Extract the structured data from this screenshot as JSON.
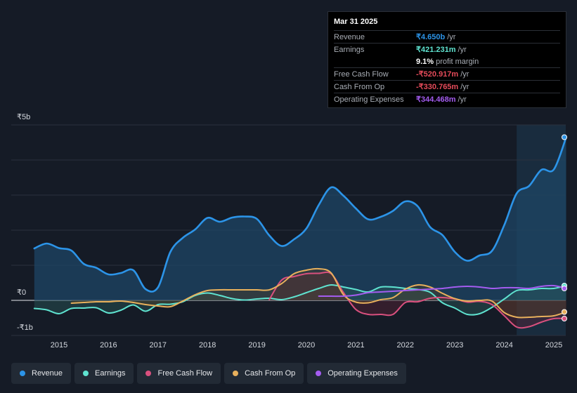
{
  "tooltip": {
    "date": "Mar 31 2025",
    "rows": [
      {
        "label": "Revenue",
        "value": "₹4.650b",
        "unit": "/yr",
        "color": "#2c94e8"
      },
      {
        "label": "Earnings",
        "value": "₹421.231m",
        "unit": "/yr",
        "color": "#5fe3d0"
      },
      {
        "label": "",
        "value": "9.1%",
        "unit": "profit margin",
        "color": "#ffffff"
      },
      {
        "label": "Free Cash Flow",
        "value": "-₹520.917m",
        "unit": "/yr",
        "color": "#e54b5a"
      },
      {
        "label": "Cash From Op",
        "value": "-₹330.765m",
        "unit": "/yr",
        "color": "#e54b5a"
      },
      {
        "label": "Operating Expenses",
        "value": "₹344.468m",
        "unit": "/yr",
        "color": "#a45cf0"
      }
    ]
  },
  "legend": [
    {
      "label": "Revenue",
      "color": "#2c94e8"
    },
    {
      "label": "Earnings",
      "color": "#5fe3d0"
    },
    {
      "label": "Free Cash Flow",
      "color": "#d9507e"
    },
    {
      "label": "Cash From Op",
      "color": "#e8b05c"
    },
    {
      "label": "Operating Expenses",
      "color": "#a45cf0"
    }
  ],
  "chart_data": {
    "type": "line",
    "title": "",
    "xlabel": "",
    "ylabel": "",
    "y_tick_labels": [
      "₹5b",
      "₹0",
      "-₹1b"
    ],
    "x_tick_labels": [
      "2015",
      "2016",
      "2017",
      "2018",
      "2019",
      "2020",
      "2021",
      "2022",
      "2023",
      "2024",
      "2025"
    ],
    "ylim": [
      -1.0,
      5.0
    ],
    "xlim": [
      2014.5,
      2025.3
    ],
    "highlight_from": 2024.25,
    "series": [
      {
        "name": "Revenue",
        "color": "#2c94e8",
        "fill": true,
        "x": [
          2014.5,
          2014.75,
          2015.0,
          2015.25,
          2015.5,
          2015.75,
          2016.0,
          2016.25,
          2016.5,
          2016.75,
          2017.0,
          2017.25,
          2017.5,
          2017.75,
          2018.0,
          2018.25,
          2018.5,
          2018.75,
          2019.0,
          2019.25,
          2019.5,
          2019.75,
          2020.0,
          2020.25,
          2020.5,
          2020.75,
          2021.0,
          2021.25,
          2021.5,
          2021.75,
          2022.0,
          2022.25,
          2022.5,
          2022.75,
          2023.0,
          2023.25,
          2023.5,
          2023.75,
          2024.0,
          2024.25,
          2024.5,
          2024.75,
          2025.0,
          2025.25
        ],
        "values": [
          1.48,
          1.62,
          1.49,
          1.42,
          1.04,
          0.93,
          0.74,
          0.78,
          0.86,
          0.32,
          0.37,
          1.38,
          1.78,
          2.02,
          2.35,
          2.24,
          2.36,
          2.39,
          2.32,
          1.85,
          1.55,
          1.74,
          2.05,
          2.72,
          3.22,
          2.98,
          2.62,
          2.31,
          2.38,
          2.55,
          2.82,
          2.68,
          2.09,
          1.86,
          1.38,
          1.13,
          1.28,
          1.41,
          2.15,
          3.05,
          3.26,
          3.72,
          3.73,
          4.65
        ]
      },
      {
        "name": "Earnings",
        "color": "#5fe3d0",
        "fill": true,
        "x": [
          2014.5,
          2014.75,
          2015.0,
          2015.25,
          2015.5,
          2015.75,
          2016.0,
          2016.25,
          2016.5,
          2016.75,
          2017.0,
          2017.25,
          2017.5,
          2017.75,
          2018.0,
          2018.25,
          2018.5,
          2018.75,
          2019.0,
          2019.25,
          2019.5,
          2019.75,
          2020.0,
          2020.25,
          2020.5,
          2020.75,
          2021.0,
          2021.25,
          2021.5,
          2021.75,
          2022.0,
          2022.25,
          2022.5,
          2022.75,
          2023.0,
          2023.25,
          2023.5,
          2023.75,
          2024.0,
          2024.25,
          2024.5,
          2024.75,
          2025.0,
          2025.25
        ],
        "values": [
          -0.23,
          -0.27,
          -0.38,
          -0.23,
          -0.22,
          -0.21,
          -0.36,
          -0.28,
          -0.13,
          -0.31,
          -0.12,
          -0.11,
          -0.04,
          0.14,
          0.21,
          0.14,
          0.05,
          0.01,
          0.04,
          0.06,
          0.02,
          0.1,
          0.22,
          0.34,
          0.44,
          0.38,
          0.31,
          0.24,
          0.38,
          0.38,
          0.34,
          0.31,
          0.23,
          -0.07,
          -0.22,
          -0.4,
          -0.38,
          -0.2,
          0.04,
          0.28,
          0.3,
          0.34,
          0.34,
          0.42
        ]
      },
      {
        "name": "Free Cash Flow",
        "color": "#d9507e",
        "fill": true,
        "x": [
          2019.25,
          2019.5,
          2019.75,
          2020.0,
          2020.25,
          2020.5,
          2020.75,
          2021.0,
          2021.25,
          2021.5,
          2021.75,
          2022.0,
          2022.25,
          2022.5,
          2022.75,
          2023.0,
          2023.25,
          2023.5,
          2023.75,
          2024.0,
          2024.25,
          2024.5,
          2024.75,
          2025.0,
          2025.25
        ],
        "values": [
          0.02,
          0.58,
          0.68,
          0.76,
          0.77,
          0.76,
          0.22,
          -0.26,
          -0.4,
          -0.4,
          -0.4,
          -0.06,
          -0.04,
          0.06,
          0.08,
          0.04,
          -0.05,
          -0.03,
          -0.12,
          -0.44,
          -0.76,
          -0.75,
          -0.62,
          -0.52,
          -0.52
        ]
      },
      {
        "name": "Cash From Op",
        "color": "#e8b05c",
        "fill": true,
        "x": [
          2015.25,
          2015.5,
          2015.75,
          2016.0,
          2016.25,
          2016.5,
          2016.75,
          2017.0,
          2017.25,
          2017.5,
          2017.75,
          2018.0,
          2018.25,
          2018.5,
          2018.75,
          2019.0,
          2019.25,
          2019.5,
          2019.75,
          2020.0,
          2020.25,
          2020.5,
          2020.75,
          2021.0,
          2021.25,
          2021.5,
          2021.75,
          2022.0,
          2022.25,
          2022.5,
          2022.75,
          2023.0,
          2023.25,
          2023.5,
          2023.75,
          2024.0,
          2024.25,
          2024.5,
          2024.75,
          2025.0,
          2025.25
        ],
        "values": [
          -0.08,
          -0.06,
          -0.04,
          -0.04,
          -0.02,
          -0.06,
          -0.12,
          -0.16,
          -0.18,
          -0.02,
          0.16,
          0.28,
          0.3,
          0.3,
          0.3,
          0.3,
          0.3,
          0.48,
          0.76,
          0.86,
          0.9,
          0.78,
          0.16,
          -0.05,
          -0.07,
          0.02,
          0.08,
          0.32,
          0.44,
          0.38,
          0.2,
          0.05,
          -0.02,
          0.0,
          -0.02,
          -0.35,
          -0.48,
          -0.48,
          -0.46,
          -0.44,
          -0.33
        ]
      },
      {
        "name": "Operating Expenses",
        "color": "#a45cf0",
        "fill": false,
        "x": [
          2020.25,
          2020.5,
          2020.75,
          2021.0,
          2021.25,
          2021.5,
          2021.75,
          2022.0,
          2022.25,
          2022.5,
          2022.75,
          2023.0,
          2023.25,
          2023.5,
          2023.75,
          2024.0,
          2024.25,
          2024.5,
          2024.75,
          2025.0,
          2025.25
        ],
        "values": [
          0.12,
          0.12,
          0.12,
          0.15,
          0.22,
          0.24,
          0.26,
          0.28,
          0.3,
          0.32,
          0.34,
          0.38,
          0.4,
          0.38,
          0.34,
          0.36,
          0.36,
          0.34,
          0.4,
          0.42,
          0.34
        ]
      }
    ]
  }
}
